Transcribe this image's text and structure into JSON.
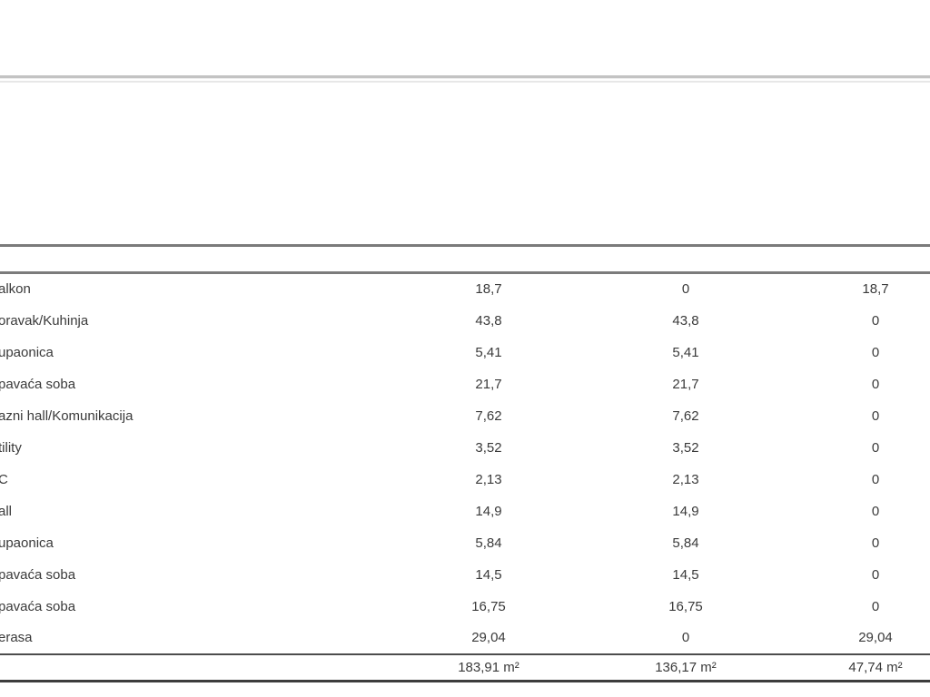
{
  "page": {
    "background": "#ffffff",
    "divider_color": "#c3c3c3",
    "table_border_color": "#7b7b7b",
    "bottom_border_color": "#3d3d3d",
    "text_color": "#3a3a3a"
  },
  "table": {
    "header": {
      "name": "",
      "value1": "",
      "value2": "",
      "value3": ""
    },
    "rows": [
      {
        "name": "alkon",
        "value1": "18,7",
        "value2": "0",
        "value3": "18,7"
      },
      {
        "name": "oravak/Kuhinja",
        "value1": "43,8",
        "value2": "43,8",
        "value3": "0"
      },
      {
        "name": "upaonica",
        "value1": "5,41",
        "value2": "5,41",
        "value3": "0"
      },
      {
        "name": "pavaća soba",
        "value1": "21,7",
        "value2": "21,7",
        "value3": "0"
      },
      {
        "name": "azni hall/Komunikacija",
        "value1": "7,62",
        "value2": "7,62",
        "value3": "0"
      },
      {
        "name": "tility",
        "value1": "3,52",
        "value2": "3,52",
        "value3": "0"
      },
      {
        "name": "C",
        "value1": "2,13",
        "value2": "2,13",
        "value3": "0"
      },
      {
        "name": "all",
        "value1": "14,9",
        "value2": "14,9",
        "value3": "0"
      },
      {
        "name": "upaonica",
        "value1": "5,84",
        "value2": "5,84",
        "value3": "0"
      },
      {
        "name": "pavaća soba",
        "value1": "14,5",
        "value2": "14,5",
        "value3": "0"
      },
      {
        "name": "pavaća soba",
        "value1": "16,75",
        "value2": "16,75",
        "value3": "0"
      },
      {
        "name": "erasa",
        "value1": "29,04",
        "value2": "0",
        "value3": "29,04"
      }
    ],
    "totals": {
      "name": "",
      "value1": "183,91 m²",
      "value2": "136,17 m²",
      "value3": "47,74 m²"
    }
  }
}
